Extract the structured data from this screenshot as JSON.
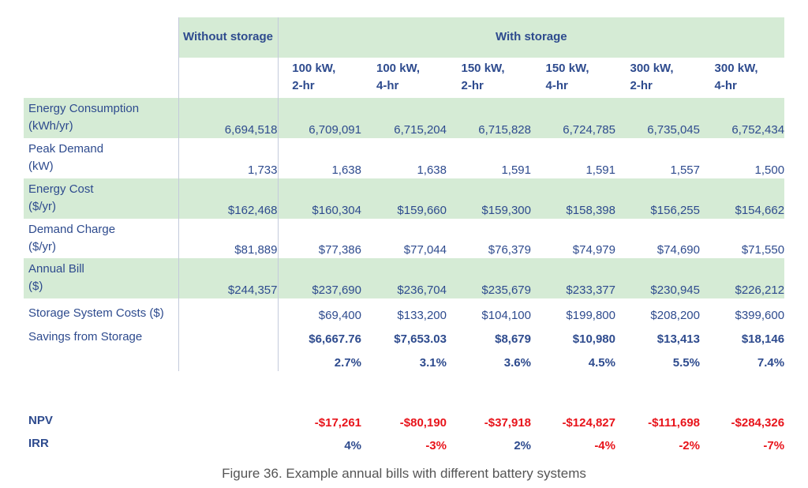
{
  "header": {
    "without_storage": "Without storage",
    "with_storage": "With storage",
    "configs": [
      "100 kW, 2-hr",
      "100 kW, 4-hr",
      "150 kW, 2-hr",
      "150 kW, 4-hr",
      "300 kW, 2-hr",
      "300 kW, 4-hr"
    ]
  },
  "rows": [
    {
      "label": [
        "Energy Consumption",
        "(kWh/yr)"
      ],
      "without": "6,694,518",
      "values": [
        "6,709,091",
        "6,715,204",
        "6,715,828",
        "6,724,785",
        "6,735,045",
        "6,752,434"
      ],
      "shaded": true
    },
    {
      "label": [
        "Peak Demand",
        "(kW)"
      ],
      "without": "1,733",
      "values": [
        "1,638",
        "1,638",
        "1,591",
        "1,591",
        "1,557",
        "1,500"
      ],
      "shaded": false
    },
    {
      "label": [
        "Energy Cost",
        "($/yr)"
      ],
      "without": "$162,468",
      "values": [
        "$160,304",
        "$159,660",
        "$159,300",
        "$158,398",
        "$156,255",
        "$154,662"
      ],
      "shaded": true
    },
    {
      "label": [
        "Demand Charge",
        "($/yr)"
      ],
      "without": "$81,889",
      "values": [
        "$77,386",
        "$77,044",
        "$76,379",
        "$74,979",
        "$74,690",
        "$71,550"
      ],
      "shaded": false
    },
    {
      "label": [
        "Annual Bill",
        "($)"
      ],
      "without": "$244,357",
      "values": [
        "$237,690",
        "$236,704",
        "$235,679",
        "$233,377",
        "$230,945",
        "$226,212"
      ],
      "shaded": true
    }
  ],
  "storage_costs": {
    "label": "Storage System Costs ($)",
    "values": [
      "$69,400",
      "$133,200",
      "$104,100",
      "$199,800",
      "$208,200",
      "$399,600"
    ]
  },
  "savings": {
    "label": "Savings from Storage",
    "values": [
      "$6,667.76",
      "$7,653.03",
      "$8,679",
      "$10,980",
      "$13,413",
      "$18,146"
    ],
    "percent": [
      "2.7%",
      "3.1%",
      "3.6%",
      "4.5%",
      "5.5%",
      "7.4%"
    ]
  },
  "npv": {
    "label": "NPV",
    "values": [
      "-$17,261",
      "-$80,190",
      "-$37,918",
      "-$124,827",
      "-$111,698",
      "-$284,326"
    ]
  },
  "irr": {
    "label": "IRR",
    "values": [
      "4%",
      "-3%",
      "2%",
      "-4%",
      "-2%",
      "-7%"
    ]
  },
  "colors": {
    "text": "#2e4b8e",
    "shading": "#d5ebd5",
    "negative": "#e8141b"
  },
  "caption": "Figure 36. Example annual bills with different battery systems"
}
